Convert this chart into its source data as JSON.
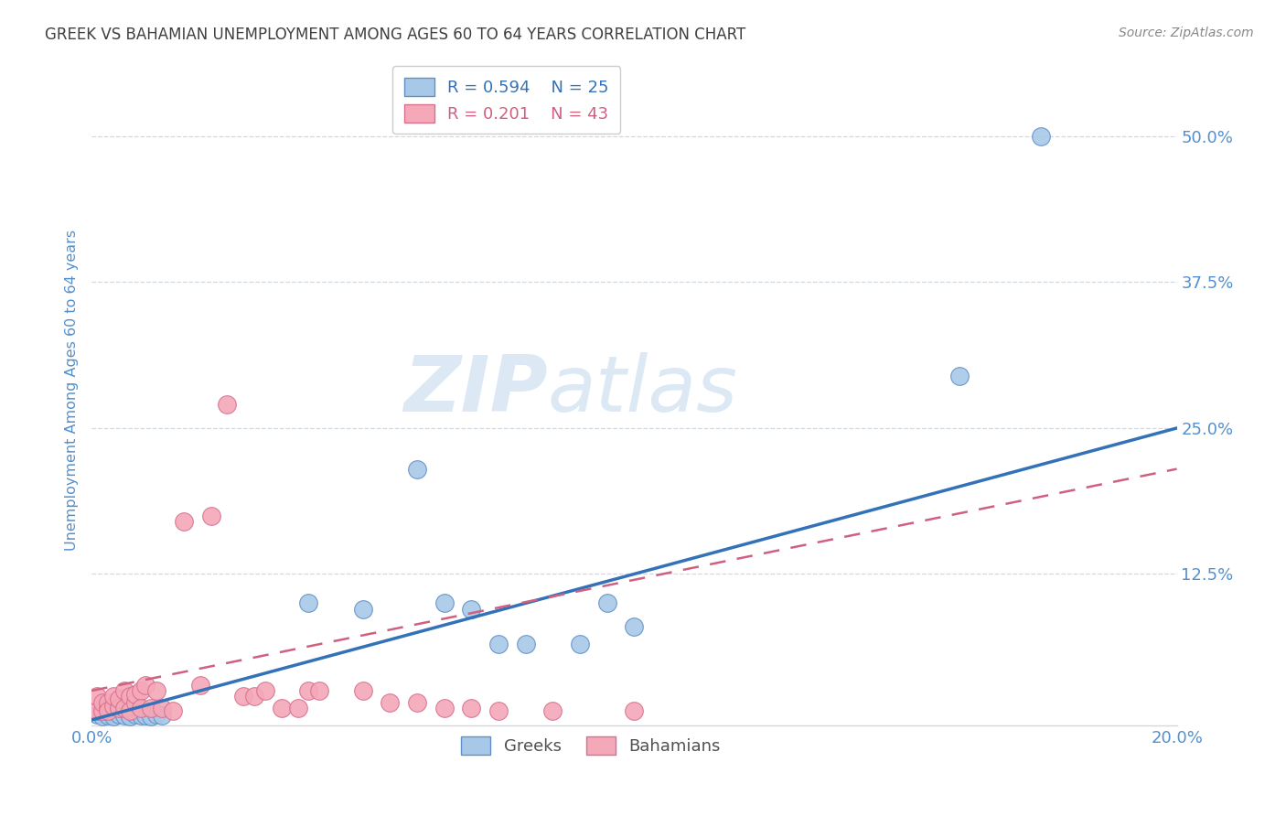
{
  "title": "GREEK VS BAHAMIAN UNEMPLOYMENT AMONG AGES 60 TO 64 YEARS CORRELATION CHART",
  "source": "Source: ZipAtlas.com",
  "ylabel": "Unemployment Among Ages 60 to 64 years",
  "xlim": [
    0.0,
    0.2
  ],
  "ylim": [
    -0.005,
    0.57
  ],
  "xtick_positions": [
    0.0,
    0.04,
    0.08,
    0.12,
    0.16,
    0.2
  ],
  "xticklabels": [
    "0.0%",
    "",
    "",
    "",
    "",
    "20.0%"
  ],
  "ytick_positions": [
    0.125,
    0.25,
    0.375,
    0.5
  ],
  "ytick_labels": [
    "12.5%",
    "25.0%",
    "37.5%",
    "50.0%"
  ],
  "greek_R": 0.594,
  "greek_N": 25,
  "bahamian_R": 0.201,
  "bahamian_N": 43,
  "greek_color": "#a8c8e8",
  "bahamian_color": "#f4a8b8",
  "greek_edge_color": "#6090c8",
  "bahamian_edge_color": "#d87090",
  "greek_line_color": "#3372b8",
  "bahamian_line_color": "#d06080",
  "watermark_color": "#dce8f4",
  "title_color": "#404040",
  "source_color": "#888888",
  "tick_label_color": "#5590cc",
  "ylabel_color": "#5590cc",
  "grid_color": "#d0d8e0",
  "greek_x": [
    0.001,
    0.002,
    0.003,
    0.004,
    0.005,
    0.006,
    0.007,
    0.008,
    0.009,
    0.01,
    0.011,
    0.012,
    0.013,
    0.04,
    0.05,
    0.06,
    0.065,
    0.07,
    0.075,
    0.08,
    0.09,
    0.095,
    0.1,
    0.16,
    0.175
  ],
  "greek_y": [
    0.005,
    0.003,
    0.004,
    0.003,
    0.005,
    0.004,
    0.003,
    0.005,
    0.004,
    0.004,
    0.003,
    0.005,
    0.004,
    0.1,
    0.095,
    0.215,
    0.1,
    0.095,
    0.065,
    0.065,
    0.065,
    0.1,
    0.08,
    0.295,
    0.5
  ],
  "bahamian_x": [
    0.001,
    0.001,
    0.002,
    0.002,
    0.003,
    0.003,
    0.003,
    0.004,
    0.004,
    0.005,
    0.005,
    0.006,
    0.006,
    0.007,
    0.007,
    0.008,
    0.008,
    0.009,
    0.009,
    0.01,
    0.011,
    0.012,
    0.013,
    0.015,
    0.017,
    0.02,
    0.022,
    0.025,
    0.028,
    0.03,
    0.032,
    0.035,
    0.038,
    0.04,
    0.042,
    0.05,
    0.055,
    0.06,
    0.065,
    0.07,
    0.075,
    0.085,
    0.1
  ],
  "bahamian_y": [
    0.008,
    0.02,
    0.008,
    0.015,
    0.01,
    0.015,
    0.008,
    0.012,
    0.02,
    0.01,
    0.018,
    0.025,
    0.01,
    0.02,
    0.008,
    0.015,
    0.022,
    0.025,
    0.01,
    0.03,
    0.01,
    0.025,
    0.01,
    0.008,
    0.17,
    0.03,
    0.175,
    0.27,
    0.02,
    0.02,
    0.025,
    0.01,
    0.01,
    0.025,
    0.025,
    0.025,
    0.015,
    0.015,
    0.01,
    0.01,
    0.008,
    0.008,
    0.008
  ],
  "greek_line_x": [
    0.0,
    0.2
  ],
  "greek_line_y": [
    0.0,
    0.25
  ],
  "bahamian_line_x": [
    0.0,
    0.2
  ],
  "bahamian_line_y": [
    0.025,
    0.215
  ]
}
